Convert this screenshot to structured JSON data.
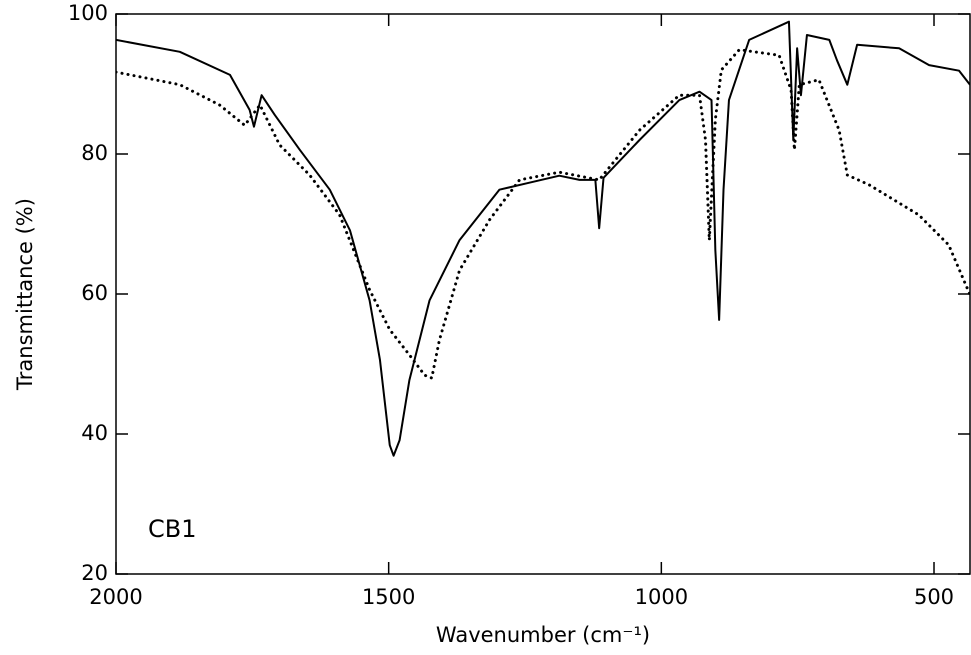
{
  "chart_data": {
    "type": "line",
    "x_label": "Wavenumber (cm⁻¹)",
    "y_label": "Transmittance (%)",
    "annotation": "CB1",
    "xlim": [
      2000,
      434
    ],
    "ylim": [
      20,
      100
    ],
    "xticks": [
      2000,
      1500,
      1000,
      500
    ],
    "yticks": [
      20,
      40,
      60,
      80,
      100
    ],
    "grid": false,
    "series": [
      {
        "style": "solid",
        "color": "#000000",
        "x": [
          2000,
          1883,
          1791,
          1755,
          1747,
          1733,
          1709,
          1663,
          1608,
          1571,
          1535,
          1516,
          1498,
          1491,
          1480,
          1462,
          1425,
          1370,
          1297,
          1242,
          1187,
          1150,
          1121,
          1114,
          1106,
          1040,
          967,
          930,
          908,
          901,
          894,
          886,
          876,
          839,
          766,
          758,
          751,
          744,
          733,
          692,
          678,
          659,
          641,
          564,
          509,
          454,
          434
        ],
        "values": [
          96.3,
          94.6,
          91.3,
          86.3,
          83.9,
          88.4,
          85.6,
          80.6,
          74.9,
          69.1,
          59.1,
          50.6,
          38.4,
          36.9,
          39.1,
          47.7,
          59.1,
          67.7,
          74.9,
          75.9,
          76.9,
          76.3,
          76.3,
          69.4,
          76.6,
          82,
          87.7,
          88.9,
          87.7,
          66.3,
          56.3,
          74.9,
          87.7,
          96.3,
          98.9,
          82,
          95.1,
          88.4,
          97,
          96.3,
          93.4,
          89.9,
          95.6,
          95.1,
          92.7,
          91.9,
          89.9
        ]
      },
      {
        "style": "dotted",
        "color": "#000000",
        "x": [
          2000,
          1883,
          1810,
          1764,
          1736,
          1700,
          1645,
          1590,
          1535,
          1498,
          1462,
          1434,
          1421,
          1407,
          1370,
          1315,
          1260,
          1187,
          1114,
          1040,
          967,
          930,
          919,
          912,
          901,
          890,
          857,
          784,
          762,
          756,
          747,
          711,
          674,
          659,
          619,
          528,
          473,
          434
        ],
        "values": [
          91.7,
          89.9,
          87,
          84.1,
          87,
          81.3,
          77,
          71.3,
          60.6,
          54.9,
          51.3,
          48.4,
          48,
          53.4,
          63.4,
          70.6,
          76.3,
          77.4,
          76.3,
          83.4,
          88.4,
          88.4,
          82,
          67.7,
          84.9,
          92,
          94.9,
          94.1,
          89.1,
          80.6,
          89.9,
          90.6,
          83.4,
          77,
          75.6,
          71.3,
          67,
          59.9
        ]
      }
    ]
  }
}
